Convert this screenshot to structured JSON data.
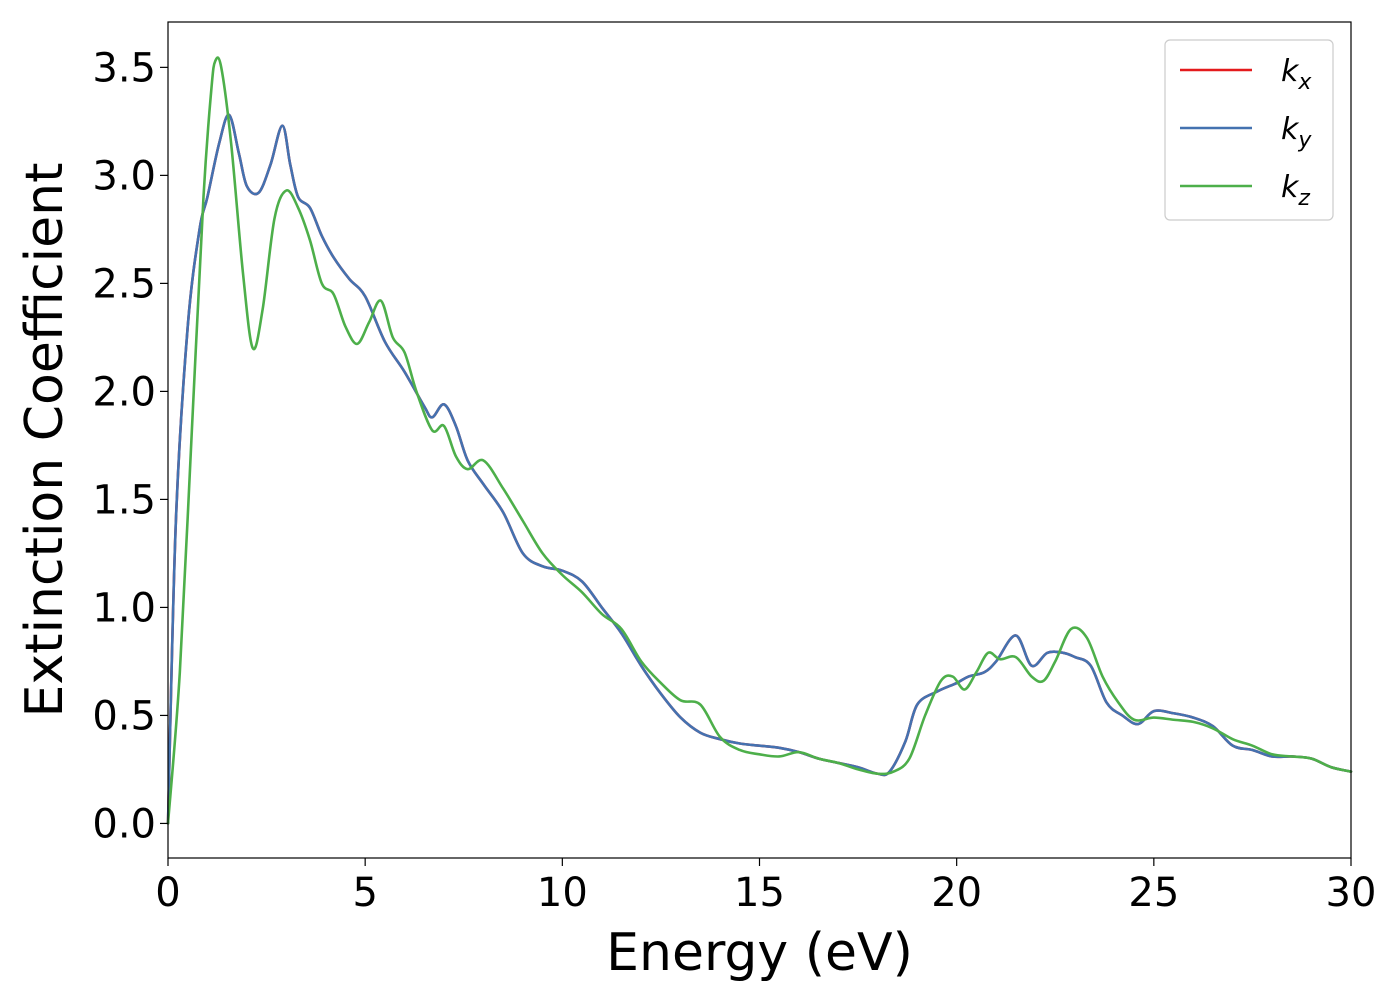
{
  "chart_data": {
    "type": "line",
    "title": "",
    "xlabel": "Energy (eV)",
    "ylabel": "Extinction Coefficient",
    "xlim": [
      0,
      30
    ],
    "ylim": [
      -0.16,
      3.71
    ],
    "xticks": [
      0,
      5,
      10,
      15,
      20,
      25,
      30
    ],
    "yticks": [
      0.0,
      0.5,
      1.0,
      1.5,
      2.0,
      2.5,
      3.0,
      3.5
    ],
    "xtick_labels": [
      "0",
      "5",
      "10",
      "15",
      "20",
      "25",
      "30"
    ],
    "ytick_labels": [
      "0.0",
      "0.5",
      "1.0",
      "1.5",
      "2.0",
      "2.5",
      "3.0",
      "3.5"
    ],
    "grid": false,
    "legend_position": "top-right",
    "series": [
      {
        "name": "k",
        "subscript": "x",
        "color": "#e41a1c",
        "x": [
          0,
          0.2,
          0.5,
          0.8,
          1.0,
          1.3,
          1.55,
          1.8,
          2.0,
          2.3,
          2.6,
          2.9,
          3.1,
          3.3,
          3.6,
          3.9,
          4.2,
          4.6,
          5.0,
          5.5,
          6.0,
          6.5,
          6.7,
          7.0,
          7.3,
          7.6,
          8.0,
          8.5,
          9.0,
          9.5,
          10.0,
          10.5,
          11.0,
          11.5,
          12.0,
          12.5,
          13.0,
          13.5,
          14.0,
          14.5,
          15.0,
          15.5,
          16.0,
          16.5,
          17.0,
          17.5,
          18.0,
          18.3,
          18.7,
          19.0,
          19.5,
          20.0,
          20.3,
          20.7,
          21.0,
          21.5,
          21.9,
          22.3,
          22.7,
          23.0,
          23.4,
          23.8,
          24.2,
          24.6,
          25.0,
          25.5,
          26.0,
          26.5,
          27.0,
          27.5,
          28.0,
          28.5,
          29.0,
          29.5,
          30.0
        ],
        "y": [
          0.0,
          1.4,
          2.3,
          2.75,
          2.9,
          3.15,
          3.28,
          3.1,
          2.95,
          2.92,
          3.05,
          3.23,
          3.05,
          2.9,
          2.85,
          2.72,
          2.62,
          2.52,
          2.44,
          2.23,
          2.09,
          1.93,
          1.88,
          1.94,
          1.84,
          1.68,
          1.57,
          1.44,
          1.25,
          1.19,
          1.17,
          1.12,
          1.0,
          0.88,
          0.73,
          0.6,
          0.49,
          0.42,
          0.39,
          0.37,
          0.36,
          0.35,
          0.33,
          0.3,
          0.28,
          0.26,
          0.23,
          0.24,
          0.38,
          0.55,
          0.61,
          0.65,
          0.68,
          0.7,
          0.75,
          0.87,
          0.73,
          0.79,
          0.79,
          0.77,
          0.73,
          0.56,
          0.5,
          0.46,
          0.52,
          0.51,
          0.49,
          0.45,
          0.36,
          0.34,
          0.31,
          0.31,
          0.3,
          0.26,
          0.24
        ]
      },
      {
        "name": "k",
        "subscript": "y",
        "color": "#4472b0",
        "x": [
          0,
          0.2,
          0.5,
          0.8,
          1.0,
          1.3,
          1.55,
          1.8,
          2.0,
          2.3,
          2.6,
          2.9,
          3.1,
          3.3,
          3.6,
          3.9,
          4.2,
          4.6,
          5.0,
          5.5,
          6.0,
          6.5,
          6.7,
          7.0,
          7.3,
          7.6,
          8.0,
          8.5,
          9.0,
          9.5,
          10.0,
          10.5,
          11.0,
          11.5,
          12.0,
          12.5,
          13.0,
          13.5,
          14.0,
          14.5,
          15.0,
          15.5,
          16.0,
          16.5,
          17.0,
          17.5,
          18.0,
          18.3,
          18.7,
          19.0,
          19.5,
          20.0,
          20.3,
          20.7,
          21.0,
          21.5,
          21.9,
          22.3,
          22.7,
          23.0,
          23.4,
          23.8,
          24.2,
          24.6,
          25.0,
          25.5,
          26.0,
          26.5,
          27.0,
          27.5,
          28.0,
          28.5,
          29.0,
          29.5,
          30.0
        ],
        "y": [
          0.0,
          1.4,
          2.3,
          2.75,
          2.9,
          3.15,
          3.28,
          3.1,
          2.95,
          2.92,
          3.05,
          3.23,
          3.05,
          2.9,
          2.85,
          2.72,
          2.62,
          2.52,
          2.44,
          2.23,
          2.09,
          1.93,
          1.88,
          1.94,
          1.84,
          1.68,
          1.57,
          1.44,
          1.25,
          1.19,
          1.17,
          1.12,
          1.0,
          0.88,
          0.73,
          0.6,
          0.49,
          0.42,
          0.39,
          0.37,
          0.36,
          0.35,
          0.33,
          0.3,
          0.28,
          0.26,
          0.23,
          0.24,
          0.38,
          0.55,
          0.61,
          0.65,
          0.68,
          0.7,
          0.75,
          0.87,
          0.73,
          0.79,
          0.79,
          0.77,
          0.73,
          0.56,
          0.5,
          0.46,
          0.52,
          0.51,
          0.49,
          0.45,
          0.36,
          0.34,
          0.31,
          0.31,
          0.3,
          0.26,
          0.24
        ]
      },
      {
        "name": "k",
        "subscript": "z",
        "color": "#4daf4a",
        "x": [
          0,
          0.3,
          0.6,
          0.9,
          1.1,
          1.2,
          1.35,
          1.6,
          1.9,
          2.15,
          2.4,
          2.7,
          3.0,
          3.3,
          3.6,
          3.9,
          4.2,
          4.5,
          4.8,
          5.1,
          5.4,
          5.7,
          6.0,
          6.3,
          6.7,
          7.0,
          7.3,
          7.6,
          8.0,
          8.5,
          9.0,
          9.5,
          10.0,
          10.5,
          11.0,
          11.5,
          12.0,
          12.5,
          13.0,
          13.5,
          14.0,
          14.5,
          15.0,
          15.5,
          16.0,
          16.5,
          17.0,
          17.5,
          18.0,
          18.4,
          18.8,
          19.2,
          19.6,
          19.9,
          20.2,
          20.5,
          20.8,
          21.1,
          21.5,
          21.9,
          22.2,
          22.5,
          22.9,
          23.3,
          23.7,
          24.1,
          24.5,
          25.0,
          25.5,
          26.0,
          26.5,
          27.0,
          27.5,
          28.0,
          28.5,
          29.0,
          29.5,
          30.0
        ],
        "y": [
          0.0,
          0.7,
          1.8,
          2.9,
          3.4,
          3.53,
          3.5,
          3.15,
          2.55,
          2.2,
          2.38,
          2.8,
          2.93,
          2.85,
          2.7,
          2.5,
          2.45,
          2.3,
          2.22,
          2.32,
          2.42,
          2.25,
          2.18,
          2.0,
          1.82,
          1.84,
          1.7,
          1.64,
          1.68,
          1.55,
          1.4,
          1.25,
          1.15,
          1.07,
          0.97,
          0.9,
          0.75,
          0.65,
          0.57,
          0.55,
          0.4,
          0.34,
          0.32,
          0.31,
          0.33,
          0.3,
          0.28,
          0.25,
          0.23,
          0.24,
          0.3,
          0.5,
          0.66,
          0.68,
          0.62,
          0.7,
          0.79,
          0.76,
          0.77,
          0.68,
          0.66,
          0.75,
          0.9,
          0.86,
          0.68,
          0.56,
          0.48,
          0.49,
          0.48,
          0.47,
          0.44,
          0.39,
          0.36,
          0.32,
          0.31,
          0.3,
          0.26,
          0.24
        ]
      }
    ]
  }
}
